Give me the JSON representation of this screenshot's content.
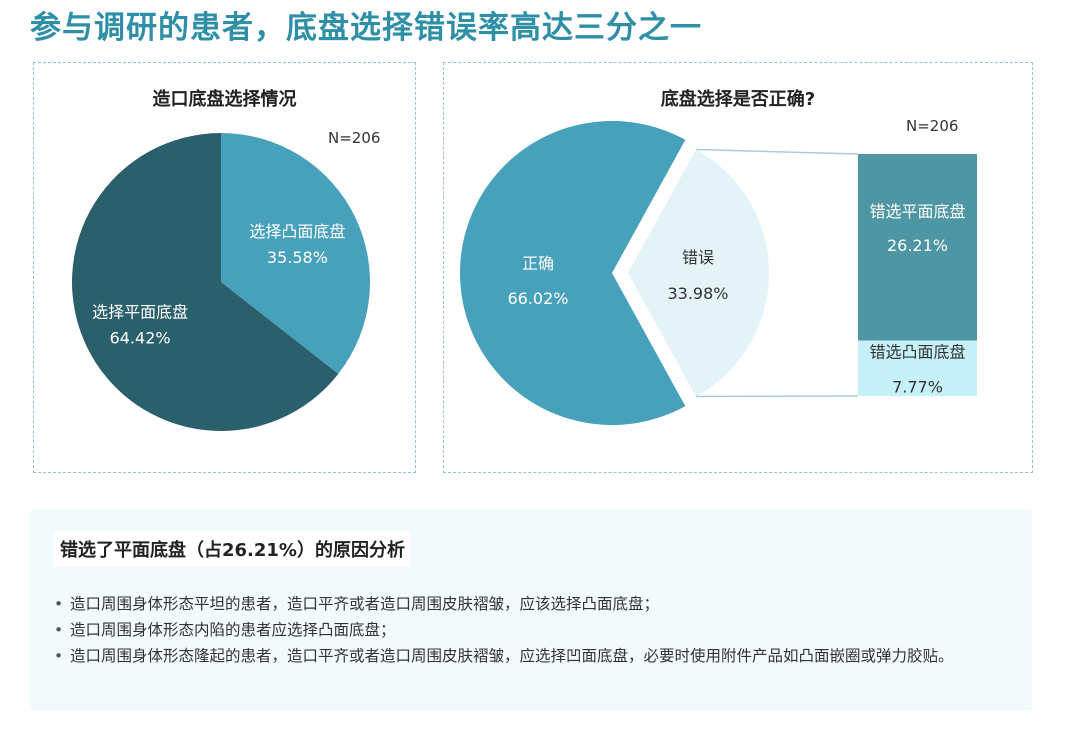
{
  "page": {
    "title": "参与调研的患者，底盘选择错误率高达三分之一"
  },
  "colors": {
    "title": "#2f8fa6",
    "flat_dark": "#2a5f6c",
    "convex_mid": "#48a1bb",
    "correct": "#47a1ba",
    "wrong_light": "#e4f3f7",
    "wrong_flat": "#4e96a3",
    "wrong_convex": "#c6f1f8"
  },
  "chart_data": [
    {
      "type": "pie",
      "title": "造口底盘选择情况",
      "annotation": "N=206",
      "slices": [
        {
          "label": "选择凸面底盘",
          "value": 35.58,
          "value_label": "35.58%"
        },
        {
          "label": "选择平面底盘",
          "value": 64.42,
          "value_label": "64.42%"
        }
      ]
    },
    {
      "type": "pie",
      "title": "底盘选择是否正确?",
      "slices": [
        {
          "label": "正确",
          "value": 66.02,
          "value_label": "66.02%"
        },
        {
          "label": "错误",
          "value": 33.98,
          "value_label": "33.98%",
          "exploded": true
        }
      ],
      "breakdown": {
        "annotation": "N=206",
        "type": "stacked_bar",
        "segments": [
          {
            "label": "错选平面底盘",
            "value": 26.21,
            "value_label": "26.21%"
          },
          {
            "label": "错选凸面底盘",
            "value": 7.77,
            "value_label": "7.77%"
          }
        ]
      }
    }
  ],
  "analysis": {
    "title": "错选了平面底盘（占26.21%）的原因分析",
    "bullets": [
      "造口周围身体形态平坦的患者，造口平齐或者造口周围皮肤褶皱，应该选择凸面底盘；",
      "造口周围身体形态内陷的患者应选择凸面底盘；",
      "造口周围身体形态隆起的患者，造口平齐或者造口周围皮肤褶皱，应选择凹面底盘，必要时使用附件产品如凸面嵌圈或弹力胶贴。"
    ]
  }
}
